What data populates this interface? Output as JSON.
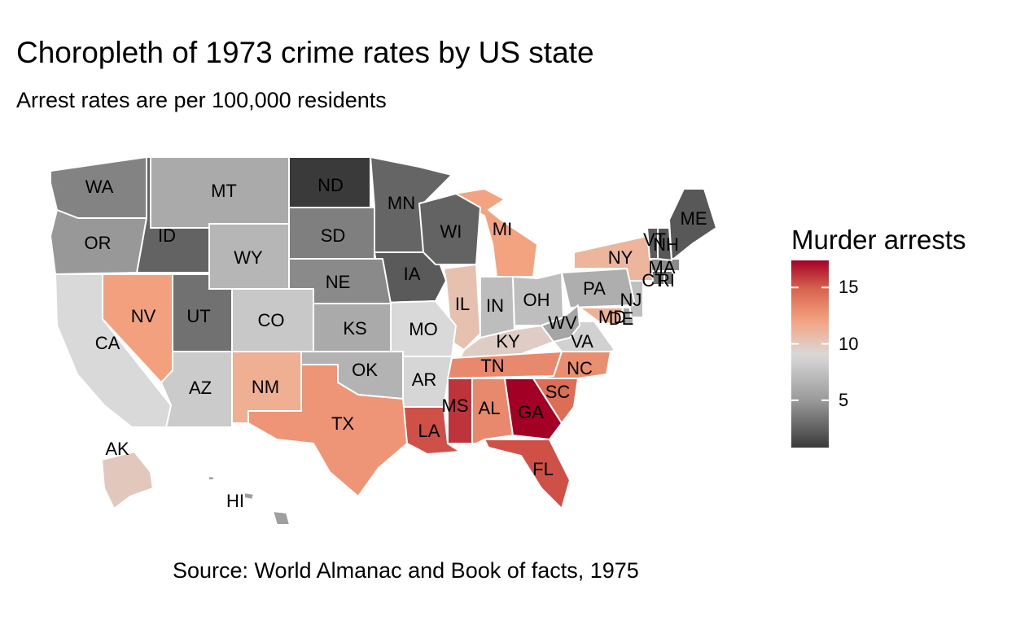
{
  "title": "Choropleth of 1973 crime rates by US state",
  "subtitle": "Arrest rates are per 100,000 residents",
  "caption": "Source: World Almanac and Book of facts, 1975",
  "legend": {
    "title": "Murder arrests",
    "ticks": [
      "5",
      "10",
      "15"
    ],
    "tick_values": [
      5,
      10,
      15
    ],
    "range": [
      0.8,
      17.4
    ],
    "palette": {
      "low": "#3a3a3a",
      "mid": "#d9d9d9",
      "high": "#a30026",
      "mid_value": 9
    }
  },
  "chart_data": {
    "type": "heatmap",
    "variable": "Murder arrests",
    "states": [
      {
        "abbr": "AL",
        "value": 13.2
      },
      {
        "abbr": "AK",
        "value": 10.0
      },
      {
        "abbr": "AZ",
        "value": 8.1
      },
      {
        "abbr": "AR",
        "value": 8.8
      },
      {
        "abbr": "CA",
        "value": 9.0
      },
      {
        "abbr": "CO",
        "value": 7.9
      },
      {
        "abbr": "CT",
        "value": 3.3
      },
      {
        "abbr": "DE",
        "value": 5.9
      },
      {
        "abbr": "FL",
        "value": 15.4
      },
      {
        "abbr": "GA",
        "value": 17.4
      },
      {
        "abbr": "HI",
        "value": 5.3
      },
      {
        "abbr": "ID",
        "value": 2.6
      },
      {
        "abbr": "IL",
        "value": 10.4
      },
      {
        "abbr": "IN",
        "value": 7.2
      },
      {
        "abbr": "IA",
        "value": 2.2
      },
      {
        "abbr": "KS",
        "value": 6.0
      },
      {
        "abbr": "KY",
        "value": 9.7
      },
      {
        "abbr": "LA",
        "value": 15.4
      },
      {
        "abbr": "ME",
        "value": 2.1
      },
      {
        "abbr": "MD",
        "value": 11.3
      },
      {
        "abbr": "MA",
        "value": 4.4
      },
      {
        "abbr": "MI",
        "value": 12.1
      },
      {
        "abbr": "MN",
        "value": 2.7
      },
      {
        "abbr": "MS",
        "value": 16.1
      },
      {
        "abbr": "MO",
        "value": 9.0
      },
      {
        "abbr": "MT",
        "value": 6.0
      },
      {
        "abbr": "NE",
        "value": 4.3
      },
      {
        "abbr": "NV",
        "value": 12.2
      },
      {
        "abbr": "NH",
        "value": 2.1
      },
      {
        "abbr": "NJ",
        "value": 7.4
      },
      {
        "abbr": "NM",
        "value": 11.4
      },
      {
        "abbr": "NY",
        "value": 11.1
      },
      {
        "abbr": "NC",
        "value": 13.0
      },
      {
        "abbr": "ND",
        "value": 0.8
      },
      {
        "abbr": "OH",
        "value": 7.3
      },
      {
        "abbr": "OK",
        "value": 6.6
      },
      {
        "abbr": "OR",
        "value": 4.9
      },
      {
        "abbr": "PA",
        "value": 6.3
      },
      {
        "abbr": "RI",
        "value": 3.4
      },
      {
        "abbr": "SC",
        "value": 14.4
      },
      {
        "abbr": "SD",
        "value": 3.8
      },
      {
        "abbr": "TN",
        "value": 13.2
      },
      {
        "abbr": "TX",
        "value": 12.7
      },
      {
        "abbr": "UT",
        "value": 3.2
      },
      {
        "abbr": "VT",
        "value": 2.2
      },
      {
        "abbr": "VA",
        "value": 8.5
      },
      {
        "abbr": "WA",
        "value": 4.0
      },
      {
        "abbr": "WV",
        "value": 5.7
      },
      {
        "abbr": "WI",
        "value": 2.6
      },
      {
        "abbr": "WY",
        "value": 6.8
      }
    ]
  }
}
